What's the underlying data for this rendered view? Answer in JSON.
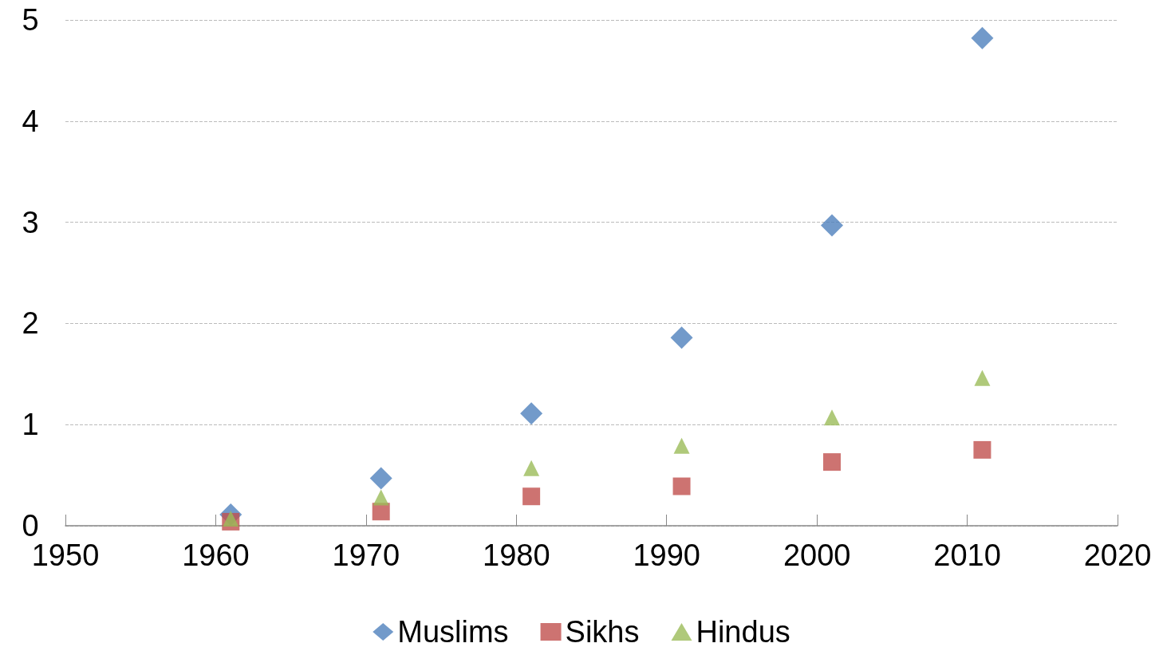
{
  "chart_data": {
    "type": "scatter",
    "x": [
      1961,
      1971,
      1981,
      1991,
      2001,
      2011
    ],
    "series": [
      {
        "name": "Muslims",
        "color": "#4f81bd",
        "marker": "diamond",
        "values": [
          0.11,
          0.47,
          1.11,
          1.86,
          2.97,
          4.82
        ]
      },
      {
        "name": "Sikhs",
        "color": "#c0504d",
        "marker": "square",
        "values": [
          0.04,
          0.14,
          0.29,
          0.39,
          0.63,
          0.75
        ]
      },
      {
        "name": "Hindus",
        "color": "#9bbb59",
        "marker": "triangle",
        "values": [
          0.07,
          0.28,
          0.57,
          0.79,
          1.07,
          1.46
        ]
      }
    ],
    "xlim": [
      1950,
      2020
    ],
    "xticks": [
      1950,
      1960,
      1970,
      1980,
      1990,
      2000,
      2010,
      2020
    ],
    "ylim": [
      0,
      5
    ],
    "yticks": [
      0,
      1,
      2,
      3,
      4,
      5
    ],
    "grid": "y",
    "legend": "bottom"
  }
}
